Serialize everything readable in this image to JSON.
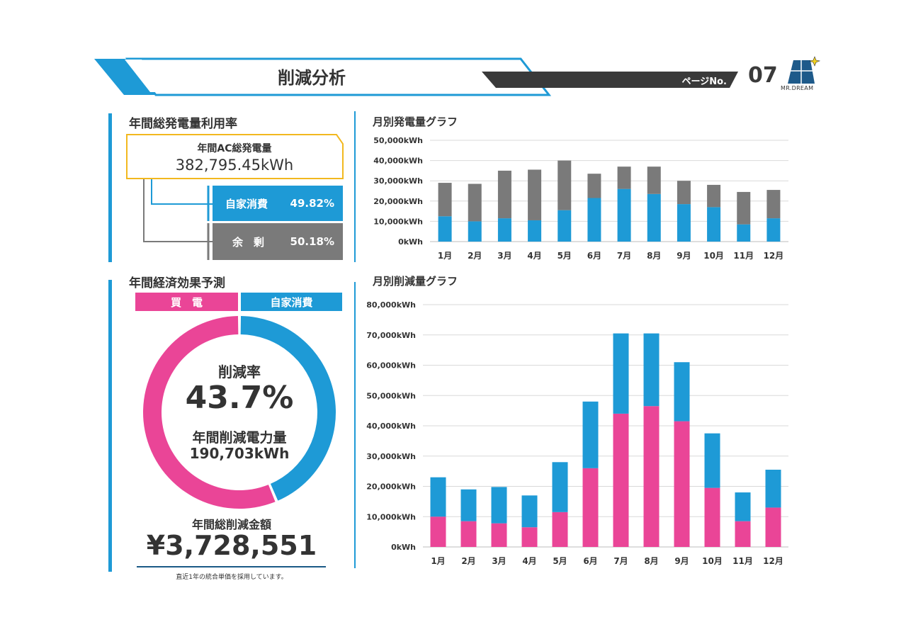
{
  "header": {
    "title": "削減分析",
    "page_label": "ページNo.",
    "page_number": "07",
    "logo_text": "MR.DREAM"
  },
  "left_top": {
    "title": "年間総発電量利用率",
    "total_label": "年間AC総発電量",
    "total_value": "382,795.45kWh",
    "self_label": "自家消費",
    "self_value": "49.82%",
    "surplus_label": "余　剰",
    "surplus_value": "50.18%"
  },
  "left_bottom": {
    "title": "年間経済効果予測",
    "legend_buy": "買　電",
    "legend_self": "自家消費",
    "rate_label": "削減率",
    "rate_value": "43.7%",
    "power_label": "年間削減電力量",
    "power_value": "190,703kWh",
    "savings_label": "年間総削減金額",
    "savings_value": "¥3,728,551",
    "note": "直近1年の統合単価を採用しています。"
  },
  "colors": {
    "blue": "#1e9ad6",
    "gray": "#7a7a7a",
    "pink": "#ea4597",
    "yellow": "#f2b81f",
    "dark": "#3a3a3a"
  },
  "chart_data": [
    {
      "type": "bar",
      "stacked": true,
      "title": "月別発電量グラフ",
      "categories": [
        "1月",
        "2月",
        "3月",
        "4月",
        "5月",
        "6月",
        "7月",
        "8月",
        "9月",
        "10月",
        "11月",
        "12月"
      ],
      "y_ticks": [
        "50,000kWh",
        "40,000kWh",
        "30,000kWh",
        "20,000kWh",
        "10,000kWh",
        "0kWh"
      ],
      "ylim": [
        0,
        50000
      ],
      "grid": true,
      "series": [
        {
          "values": [
            12500,
            10000,
            11500,
            10500,
            15500,
            21500,
            26000,
            23500,
            18500,
            17000,
            8500,
            11500
          ],
          "color": "#1e9ad6"
        },
        {
          "values": [
            16500,
            18500,
            23500,
            25000,
            24500,
            12000,
            11000,
            13500,
            11500,
            11000,
            16000,
            14000
          ],
          "color": "#7a7a7a"
        }
      ]
    },
    {
      "type": "bar",
      "stacked": true,
      "title": "月別削減量グラフ",
      "categories": [
        "1月",
        "2月",
        "3月",
        "4月",
        "5月",
        "6月",
        "7月",
        "8月",
        "9月",
        "10月",
        "11月",
        "12月"
      ],
      "y_ticks": [
        "80,000kWh",
        "70,000kWh",
        "60,000kWh",
        "50,000kWh",
        "40,000kWh",
        "30,000kWh",
        "20,000kWh",
        "10,000kWh",
        "0kWh"
      ],
      "ylim": [
        0,
        80000
      ],
      "grid": true,
      "series": [
        {
          "values": [
            10000,
            8500,
            7800,
            6500,
            11500,
            26000,
            44000,
            46500,
            41500,
            19500,
            8500,
            13000
          ],
          "color": "#ea4597"
        },
        {
          "values": [
            13000,
            10500,
            12000,
            10500,
            16500,
            22000,
            26500,
            24000,
            19500,
            18000,
            9500,
            12500
          ],
          "color": "#1e9ad6"
        }
      ]
    }
  ],
  "donut": {
    "segments": [
      {
        "name": "買電",
        "value": 56.3,
        "color": "#ea4597"
      },
      {
        "name": "自家消費",
        "value": 43.7,
        "color": "#1e9ad6"
      }
    ]
  }
}
